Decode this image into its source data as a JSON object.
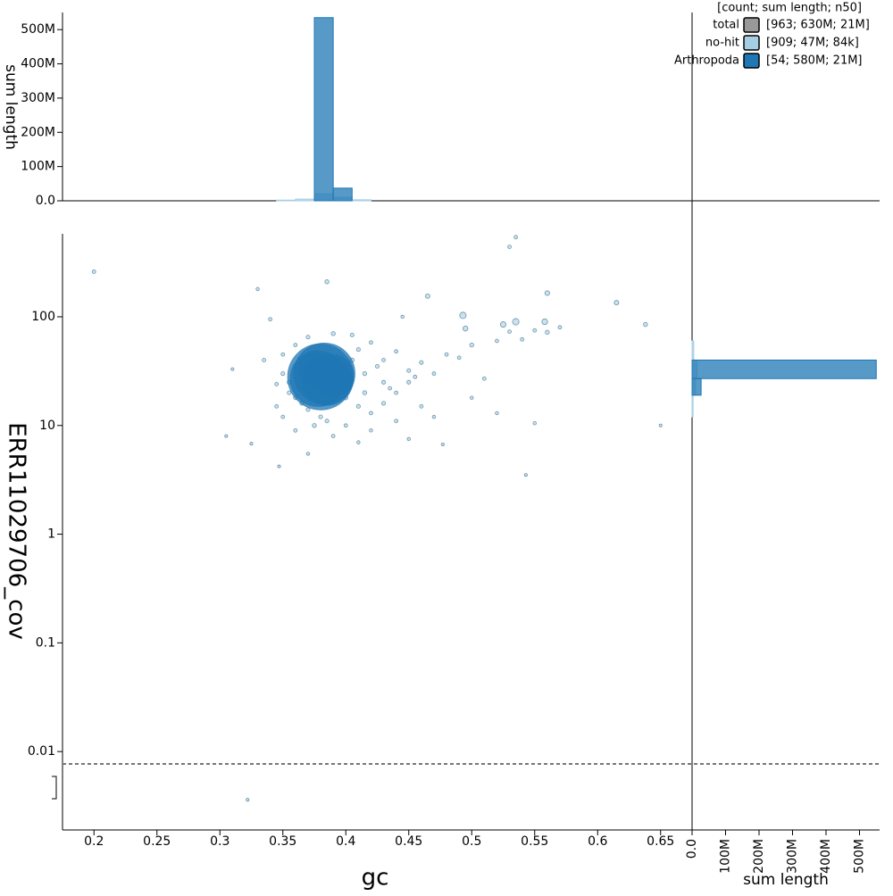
{
  "chart_data": [
    {
      "type": "scatter",
      "x_label": "gc",
      "y_label": "ERR11029706_cov",
      "log_y": true,
      "xlim": [
        0.175,
        0.675
      ],
      "xticks": [
        0.2,
        0.25,
        0.3,
        0.35,
        0.4,
        0.45,
        0.5,
        0.55,
        0.6,
        0.65
      ],
      "ylim": [
        0.0019,
        580
      ],
      "yticks": [
        0.01,
        0.1,
        1,
        10,
        100
      ],
      "threshold": 0.0077,
      "legend_title": "[count; sum length; n50]",
      "legend": "top-right",
      "series": [
        {
          "name": "total",
          "color": "#999999",
          "summary": "[963; 630M; 21M]",
          "x": [],
          "values": [],
          "sizes": []
        },
        {
          "name": "no-hit",
          "color": "#a6cee3",
          "summary": "[909; 47M; 84k]",
          "x": [
            0.2,
            0.33,
            0.385,
            0.465,
            0.53,
            0.535,
            0.56,
            0.615,
            0.638,
            0.493,
            0.495,
            0.525,
            0.535,
            0.558,
            0.53,
            0.54,
            0.55,
            0.52,
            0.5,
            0.48,
            0.46,
            0.49,
            0.51,
            0.5,
            0.52,
            0.55,
            0.65,
            0.543,
            0.31,
            0.305,
            0.325,
            0.347,
            0.37,
            0.45,
            0.477,
            0.34,
            0.445,
            0.405,
            0.42,
            0.41,
            0.44,
            0.43,
            0.47,
            0.45,
            0.44,
            0.46,
            0.47,
            0.42,
            0.4,
            0.39,
            0.36,
            0.35,
            0.345,
            0.355,
            0.35,
            0.35,
            0.36,
            0.37,
            0.39,
            0.4,
            0.41,
            0.43,
            0.38,
            0.37,
            0.41,
            0.42,
            0.44,
            0.36,
            0.345,
            0.335,
            0.322,
            0.56,
            0.57,
            0.45,
            0.455,
            0.43,
            0.415,
            0.425,
            0.405,
            0.395,
            0.365,
            0.355,
            0.415,
            0.435,
            0.375,
            0.385
          ],
          "values": [
            260,
            180,
            210,
            155,
            440,
            540,
            165,
            135,
            85,
            103,
            78,
            85,
            90,
            90,
            73,
            62,
            75,
            60,
            55,
            45,
            38,
            42,
            27,
            18,
            13,
            10.5,
            10,
            3.5,
            33,
            8,
            6.8,
            4.2,
            5.5,
            7.5,
            6.7,
            95,
            100,
            68,
            58,
            50,
            48,
            40,
            30,
            25,
            20,
            15,
            12,
            13,
            10,
            8,
            9,
            12,
            15,
            20,
            30,
            45,
            55,
            65,
            70,
            18,
            15,
            16,
            12,
            14,
            7,
            9,
            11,
            18,
            24,
            40,
            0.0036,
            72,
            80,
            32,
            28,
            25,
            30,
            35,
            40,
            22,
            16,
            25,
            20,
            22,
            10,
            11
          ],
          "sizes": [
            60000,
            50000,
            80000,
            100000,
            60000,
            60000,
            110000,
            100000,
            80000,
            200000,
            120000,
            150000,
            200000,
            160000,
            60000,
            60000,
            60000,
            60000,
            80000,
            60000,
            70000,
            60000,
            60000,
            50000,
            50000,
            50000,
            40000,
            40000,
            40000,
            40000,
            40000,
            40000,
            50000,
            50000,
            40000,
            60000,
            50000,
            70000,
            60000,
            70000,
            60000,
            60000,
            60000,
            70000,
            60000,
            60000,
            50000,
            60000,
            60000,
            60000,
            60000,
            60000,
            60000,
            70000,
            70000,
            60000,
            60000,
            70000,
            80000,
            80000,
            70000,
            70000,
            70000,
            70000,
            50000,
            50000,
            60000,
            70000,
            60000,
            60000,
            40000,
            80000,
            60000,
            70000,
            60000,
            70000,
            80000,
            70000,
            80000,
            90000,
            70000,
            80000,
            80000,
            60000,
            80000,
            70000
          ]
        },
        {
          "name": "Arthropoda",
          "color": "#1f77b4",
          "summary": "[54; 580M; 21M]",
          "x": [
            0.38,
            0.383,
            0.378,
            0.385,
            0.39,
            0.375,
            0.395,
            0.4
          ],
          "values": [
            28,
            30,
            27,
            26,
            29,
            33,
            25,
            27
          ],
          "sizes": [
            21000000,
            18000000,
            15000000,
            12000000,
            8000000,
            5000000,
            3000000,
            1000000
          ]
        }
      ]
    },
    {
      "type": "histogram",
      "y_label": "sum length",
      "ylim": [
        0,
        550000000
      ],
      "yticks": [
        {
          "value": 0,
          "label": "0.0"
        },
        {
          "value": 100000000,
          "label": "100M"
        },
        {
          "value": 200000000,
          "label": "200M"
        },
        {
          "value": 300000000,
          "label": "300M"
        },
        {
          "value": 400000000,
          "label": "400M"
        },
        {
          "value": 500000000,
          "label": "500M"
        }
      ],
      "bins": [
        0.345,
        0.36,
        0.375,
        0.39,
        0.405,
        0.42
      ],
      "series": [
        {
          "color": "#a6cee3",
          "values": [
            2000000,
            5000000,
            20000000,
            10000000,
            3000000
          ]
        },
        {
          "color": "#1f77b4",
          "values": [
            0,
            0,
            535000000,
            37000000,
            0
          ]
        }
      ]
    },
    {
      "type": "histogram",
      "orientation": "horizontal",
      "x_label": "sum length",
      "xlim": [
        0,
        560000000
      ],
      "xticks": [
        {
          "value": 0,
          "label": "0.0"
        },
        {
          "value": 100000000,
          "label": "100M"
        },
        {
          "value": 200000000,
          "label": "200M"
        },
        {
          "value": 300000000,
          "label": "300M"
        },
        {
          "value": 400000000,
          "label": "400M"
        },
        {
          "value": 500000000,
          "label": "500M"
        }
      ],
      "bins": [
        12,
        19,
        27,
        40,
        60
      ],
      "series": [
        {
          "color": "#a6cee3",
          "values": [
            3000000,
            10000000,
            15000000,
            5000000
          ]
        },
        {
          "color": "#1f77b4",
          "values": [
            0,
            27000000,
            550000000,
            0
          ]
        }
      ]
    }
  ]
}
